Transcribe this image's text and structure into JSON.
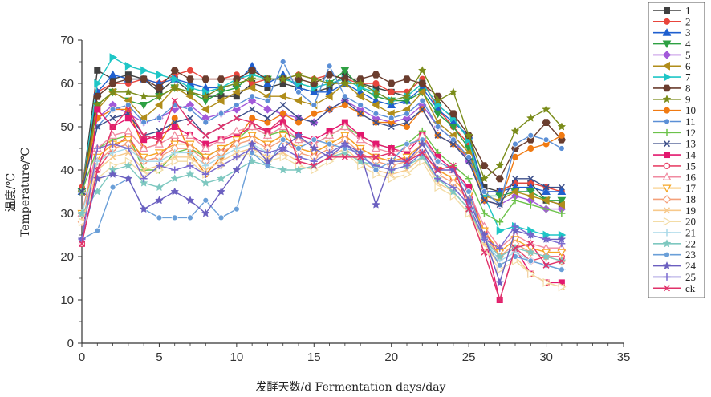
{
  "chart_data": {
    "type": "line",
    "title": "",
    "xlabel": "发酵天数/d Fermentation days/day",
    "ylabel_cn": "温度/℃",
    "ylabel_en": "Temperature/℃",
    "xlim": [
      0,
      35
    ],
    "ylim": [
      0,
      70
    ],
    "xticks": [
      0,
      5,
      10,
      15,
      20,
      25,
      30,
      35
    ],
    "yticks": [
      0,
      10,
      20,
      30,
      40,
      50,
      60,
      70
    ],
    "grid": false,
    "legend_position": "right",
    "x": [
      0,
      1,
      2,
      3,
      4,
      5,
      6,
      7,
      8,
      9,
      10,
      11,
      12,
      13,
      14,
      15,
      16,
      17,
      18,
      19,
      20,
      21,
      22,
      23,
      24,
      25,
      26,
      27,
      28,
      29,
      30,
      31
    ],
    "series": [
      {
        "name": "1",
        "color": "#404040",
        "marker": "square",
        "values": [
          35,
          63,
          61,
          62,
          61,
          58,
          61,
          58,
          57,
          57,
          57,
          60,
          59,
          60,
          59,
          58,
          59,
          62,
          60,
          59,
          58,
          57,
          60,
          55,
          52,
          47,
          36,
          35,
          37,
          37,
          33,
          32
        ]
      },
      {
        "name": "2",
        "color": "#e8453c",
        "marker": "circle",
        "values": [
          36,
          58,
          60,
          60,
          61,
          60,
          62,
          63,
          61,
          61,
          62,
          60,
          61,
          61,
          62,
          61,
          62,
          61,
          60,
          60,
          58,
          58,
          61,
          54,
          50,
          46,
          35,
          35,
          37,
          37,
          36,
          35
        ]
      },
      {
        "name": "3",
        "color": "#1f5fcf",
        "marker": "triangle-up",
        "values": [
          35,
          58,
          62,
          61,
          61,
          60,
          61,
          60,
          59,
          59,
          60,
          64,
          60,
          62,
          59,
          58,
          58,
          60,
          58,
          56,
          55,
          56,
          59,
          54,
          51,
          48,
          35,
          35,
          36,
          36,
          35,
          35
        ]
      },
      {
        "name": "4",
        "color": "#2ea043",
        "marker": "triangle-down",
        "values": [
          35,
          55,
          58,
          56,
          55,
          57,
          59,
          58,
          56,
          58,
          59,
          62,
          61,
          61,
          60,
          59,
          60,
          63,
          59,
          57,
          56,
          56,
          58,
          53,
          50,
          45,
          34,
          34,
          35,
          35,
          33,
          33
        ]
      },
      {
        "name": "5",
        "color": "#a259d9",
        "marker": "diamond",
        "values": [
          35,
          52,
          55,
          53,
          51,
          52,
          54,
          55,
          52,
          53,
          54,
          56,
          54,
          53,
          52,
          51,
          54,
          56,
          54,
          52,
          51,
          52,
          55,
          50,
          47,
          42,
          33,
          32,
          34,
          33,
          31,
          31
        ]
      },
      {
        "name": "6",
        "color": "#b08d1a",
        "marker": "triangle-left",
        "values": [
          35,
          54,
          58,
          56,
          52,
          55,
          59,
          57,
          54,
          56,
          58,
          59,
          57,
          57,
          56,
          55,
          57,
          60,
          57,
          55,
          53,
          54,
          58,
          51,
          48,
          44,
          34,
          33,
          35,
          34,
          33,
          32
        ]
      },
      {
        "name": "7",
        "color": "#1fc6c6",
        "marker": "triangle-right",
        "values": [
          35,
          60,
          66,
          64,
          63,
          62,
          61,
          59,
          58,
          59,
          61,
          62,
          61,
          61,
          60,
          59,
          60,
          61,
          59,
          58,
          56,
          57,
          60,
          55,
          52,
          47,
          34,
          26,
          27,
          26,
          25,
          25
        ]
      },
      {
        "name": "8",
        "color": "#6a3d2e",
        "marker": "hexagon",
        "values": [
          35,
          57,
          60,
          61,
          61,
          59,
          63,
          61,
          61,
          61,
          61,
          63,
          61,
          61,
          61,
          60,
          62,
          61,
          61,
          62,
          60,
          61,
          60,
          57,
          53,
          48,
          41,
          38,
          45,
          47,
          51,
          47
        ]
      },
      {
        "name": "9",
        "color": "#7a8c1a",
        "marker": "star",
        "values": [
          35,
          55,
          58,
          58,
          57,
          57,
          59,
          58,
          57,
          59,
          60,
          61,
          61,
          61,
          62,
          61,
          60,
          60,
          60,
          58,
          56,
          57,
          63,
          56,
          58,
          48,
          38,
          41,
          49,
          52,
          54,
          50
        ]
      },
      {
        "name": "10",
        "color": "#f07a12",
        "marker": "circle",
        "values": [
          35,
          52,
          54,
          54,
          45,
          46,
          52,
          44,
          39,
          43,
          47,
          52,
          51,
          53,
          51,
          53,
          54,
          55,
          53,
          51,
          51,
          50,
          54,
          48,
          46,
          43,
          33,
          32,
          43,
          45,
          46,
          48
        ]
      },
      {
        "name": "11",
        "color": "#5b8fd6",
        "marker": "circle-half",
        "values": [
          35,
          50,
          54,
          55,
          51,
          52,
          55,
          54,
          51,
          53,
          55,
          57,
          56,
          65,
          58,
          55,
          64,
          57,
          55,
          53,
          52,
          53,
          56,
          50,
          47,
          43,
          35,
          32,
          46,
          48,
          47,
          45
        ]
      },
      {
        "name": "12",
        "color": "#6cc24a",
        "marker": "plus",
        "values": [
          35,
          45,
          47,
          48,
          40,
          40,
          44,
          45,
          43,
          45,
          47,
          50,
          48,
          49,
          47,
          46,
          48,
          50,
          48,
          46,
          45,
          46,
          49,
          44,
          41,
          38,
          30,
          28,
          33,
          32,
          31,
          30
        ]
      },
      {
        "name": "13",
        "color": "#3d4f8a",
        "marker": "x",
        "values": [
          35,
          50,
          52,
          53,
          48,
          49,
          51,
          52,
          48,
          50,
          52,
          54,
          52,
          55,
          52,
          51,
          54,
          56,
          53,
          51,
          50,
          51,
          54,
          48,
          46,
          42,
          33,
          32,
          38,
          38,
          36,
          36
        ]
      },
      {
        "name": "14",
        "color": "#e3186e",
        "marker": "square",
        "values": [
          23,
          54,
          50,
          52,
          47,
          48,
          50,
          48,
          46,
          47,
          48,
          50,
          49,
          51,
          48,
          47,
          49,
          51,
          48,
          46,
          45,
          44,
          48,
          43,
          40,
          36,
          25,
          10,
          22,
          16,
          14,
          14
        ]
      },
      {
        "name": "15",
        "color": "#e8456a",
        "marker": "circle-open",
        "values": [
          23,
          40,
          45,
          48,
          42,
          43,
          47,
          46,
          43,
          45,
          47,
          48,
          46,
          48,
          45,
          44,
          46,
          48,
          45,
          43,
          42,
          43,
          46,
          40,
          38,
          34,
          26,
          20,
          22,
          19,
          20,
          20
        ]
      },
      {
        "name": "16",
        "color": "#f08aa0",
        "marker": "triangle-up-open",
        "values": [
          30,
          45,
          48,
          49,
          45,
          46,
          48,
          48,
          45,
          47,
          49,
          50,
          48,
          50,
          47,
          46,
          48,
          50,
          47,
          45,
          44,
          45,
          48,
          42,
          40,
          35,
          27,
          22,
          25,
          23,
          22,
          22
        ]
      },
      {
        "name": "17",
        "color": "#f5a623",
        "marker": "triangle-down-open",
        "values": [
          30,
          43,
          46,
          47,
          43,
          44,
          46,
          46,
          43,
          45,
          47,
          48,
          46,
          48,
          45,
          44,
          46,
          48,
          45,
          43,
          42,
          43,
          46,
          40,
          38,
          34,
          26,
          21,
          24,
          22,
          21,
          21
        ]
      },
      {
        "name": "18",
        "color": "#f4a07a",
        "marker": "diamond-open",
        "values": [
          28,
          42,
          45,
          46,
          42,
          43,
          45,
          45,
          42,
          44,
          46,
          47,
          45,
          47,
          44,
          43,
          45,
          47,
          44,
          42,
          41,
          42,
          45,
          39,
          37,
          33,
          25,
          20,
          23,
          21,
          20,
          19
        ]
      },
      {
        "name": "19",
        "color": "#f7c98b",
        "marker": "x",
        "values": [
          28,
          40,
          43,
          44,
          40,
          41,
          43,
          43,
          40,
          42,
          44,
          45,
          43,
          44,
          42,
          41,
          43,
          45,
          42,
          40,
          39,
          40,
          43,
          37,
          35,
          31,
          23,
          18,
          20,
          16,
          14,
          13
        ]
      },
      {
        "name": "20",
        "color": "#f3dca6",
        "marker": "triangle-right-open",
        "values": [
          28,
          38,
          41,
          42,
          39,
          40,
          42,
          42,
          39,
          41,
          43,
          44,
          42,
          43,
          41,
          40,
          42,
          44,
          41,
          39,
          38,
          39,
          42,
          36,
          34,
          30,
          22,
          17,
          19,
          16,
          14,
          13
        ]
      },
      {
        "name": "21",
        "color": "#a8d8e8",
        "marker": "plus",
        "values": [
          30,
          42,
          44,
          45,
          42,
          42,
          44,
          44,
          41,
          43,
          45,
          46,
          44,
          45,
          43,
          42,
          44,
          46,
          43,
          41,
          40,
          41,
          44,
          38,
          36,
          32,
          24,
          19,
          21,
          19,
          18,
          17
        ]
      },
      {
        "name": "22",
        "color": "#7ec8c0",
        "marker": "star",
        "values": [
          30,
          35,
          40,
          41,
          37,
          36,
          38,
          39,
          37,
          38,
          40,
          42,
          41,
          40,
          40,
          41,
          43,
          44,
          42,
          41,
          40,
          41,
          43,
          38,
          35,
          31,
          24,
          20,
          22,
          21,
          20,
          19
        ]
      },
      {
        "name": "23",
        "color": "#6a9fd8",
        "marker": "circle-half",
        "values": [
          24,
          26,
          36,
          38,
          31,
          29,
          29,
          29,
          33,
          29,
          31,
          44,
          41,
          47,
          45,
          47,
          46,
          45,
          44,
          40,
          42,
          46,
          47,
          42,
          40,
          35,
          24,
          18,
          20,
          19,
          18,
          17
        ]
      },
      {
        "name": "24",
        "color": "#6b5fc0",
        "marker": "star",
        "values": [
          24,
          38,
          39,
          38,
          31,
          33,
          35,
          33,
          30,
          35,
          40,
          46,
          42,
          45,
          48,
          45,
          43,
          46,
          44,
          32,
          42,
          42,
          46,
          40,
          40,
          33,
          25,
          14,
          26,
          25,
          24,
          24
        ]
      },
      {
        "name": "25",
        "color": "#7a6ad0",
        "marker": "plus",
        "values": [
          24,
          45,
          46,
          45,
          38,
          41,
          40,
          41,
          39,
          41,
          43,
          45,
          44,
          45,
          43,
          42,
          44,
          46,
          43,
          41,
          40,
          41,
          44,
          38,
          36,
          32,
          24,
          22,
          27,
          25,
          24,
          23
        ]
      },
      {
        "name": "ck",
        "color": "#e0326a",
        "marker": "x",
        "values": [
          23,
          40,
          50,
          54,
          48,
          47,
          56,
          51,
          48,
          50,
          52,
          51,
          49,
          52,
          42,
          41,
          43,
          43,
          43,
          43,
          44,
          42,
          44,
          40,
          41,
          31,
          21,
          10,
          22,
          23,
          18,
          19
        ]
      }
    ]
  }
}
